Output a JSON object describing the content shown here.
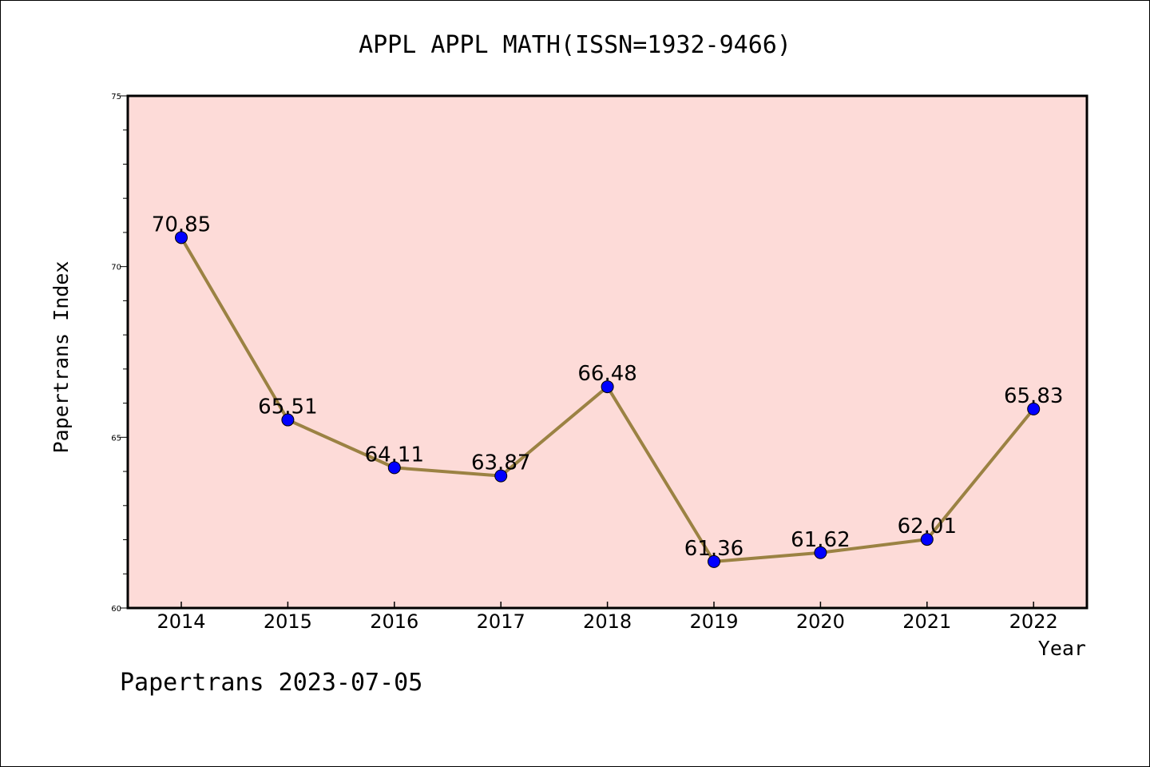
{
  "footer_text": "Papertrans 2023-07-05",
  "colors": {
    "plot_background": "#fddbd8",
    "line": "#9b8243",
    "marker": "#0000ff",
    "axis": "#000000"
  },
  "chart_data": {
    "type": "line",
    "title": "APPL APPL MATH(ISSN=1932-9466)",
    "xlabel": "Year",
    "ylabel": "Papertrans Index",
    "categories": [
      "2014",
      "2015",
      "2016",
      "2017",
      "2018",
      "2019",
      "2020",
      "2021",
      "2022"
    ],
    "series": [
      {
        "values": [
          70.85,
          65.51,
          64.11,
          63.87,
          66.48,
          61.36,
          61.62,
          62.01,
          65.83
        ],
        "labels": [
          "70.85",
          "65.51",
          "64.11",
          "63.87",
          "66.48",
          "61.36",
          "61.62",
          "62.01",
          "65.83"
        ]
      }
    ],
    "ylim": [
      60,
      75
    ],
    "y_ticks": [
      "60",
      "65",
      "70",
      "75"
    ],
    "grid": false,
    "legend": "none"
  }
}
